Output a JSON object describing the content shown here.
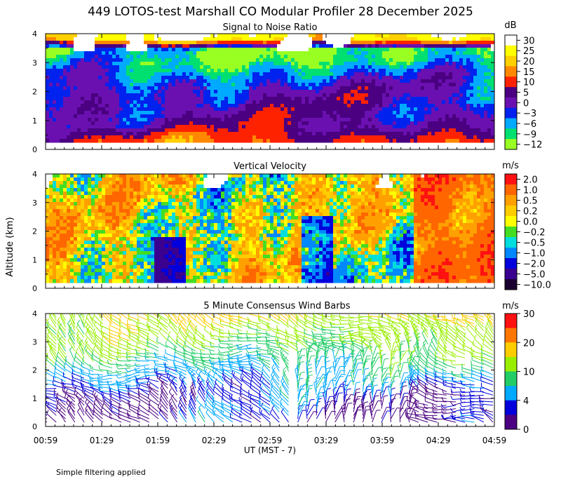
{
  "figure": {
    "title": "449 LOTOS-test Marshall CO Modular Profiler 28 December 2025",
    "ylabel": "Altitude (km)",
    "xlabel": "UT  (MST - 7)",
    "x_ticks": [
      "00:59",
      "01:29",
      "01:59",
      "02:29",
      "02:59",
      "03:29",
      "03:59",
      "04:29",
      "04:59"
    ],
    "y_ticks": [
      "0",
      "1",
      "2",
      "3",
      "4"
    ],
    "note": "Simple filtering applied"
  },
  "chart_data": [
    {
      "type": "heatmap",
      "title": "Signal to Noise Ratio",
      "colorbar_unit": "dB",
      "colorbar_labels": [
        "30",
        "25",
        "20",
        "15",
        "10",
        "5",
        "0",
        "−3",
        "−6",
        "−9",
        "−12"
      ],
      "colorbar_colors": [
        "#ffffff",
        "#ffff00",
        "#ffd000",
        "#ff8800",
        "#ff2200",
        "#4a0080",
        "#6a10b0",
        "#0022ee",
        "#00aaff",
        "#00e070",
        "#99ff22"
      ],
      "xlim": [
        "00:59",
        "04:59"
      ],
      "ylim": [
        0,
        4
      ],
      "profile": {
        "altitude_km": [
          0.3,
          0.8,
          1.2,
          1.7,
          2.2,
          2.7,
          3.1,
          3.5,
          3.9
        ],
        "snr_db": [
          12,
          4,
          2,
          1,
          -1,
          -5,
          -9,
          -11,
          25
        ]
      }
    },
    {
      "type": "heatmap",
      "title": "Vertical Velocity",
      "colorbar_unit": "m/s",
      "colorbar_labels": [
        "2.0",
        "1.0",
        "0.5",
        "0.2",
        "0.0",
        "−0.2",
        "−0.5",
        "−1.0",
        "−2.0",
        "−5.0",
        "−10.0"
      ],
      "colorbar_colors": [
        "#ff1111",
        "#ff6600",
        "#ffa000",
        "#ffcc00",
        "#ffff00",
        "#44dd22",
        "#00dddd",
        "#0088ff",
        "#0000dd",
        "#3a0090",
        "#1a0030"
      ],
      "xlim": [
        "00:59",
        "04:59"
      ],
      "ylim": [
        0,
        4
      ]
    },
    {
      "type": "scatter",
      "title": "5 Minute Consensus Wind Barbs",
      "colorbar_unit": "m/s",
      "colorbar_labels": [
        "30",
        "20",
        "10",
        "4",
        "0"
      ],
      "colorbar_colors": [
        "#ff1111",
        "#ff7700",
        "#ffcc00",
        "#99ee00",
        "#22cc66",
        "#00aaff",
        "#0000dd",
        "#4a0080"
      ],
      "xlim": [
        "00:59",
        "04:59"
      ],
      "ylim": [
        0,
        4
      ],
      "speed_profile": {
        "altitude_km": [
          0.5,
          1.0,
          1.5,
          2.0,
          2.5,
          3.0,
          3.5,
          3.8
        ],
        "speed_ms": [
          2,
          3,
          5,
          7,
          9,
          11,
          13,
          16
        ]
      }
    }
  ]
}
